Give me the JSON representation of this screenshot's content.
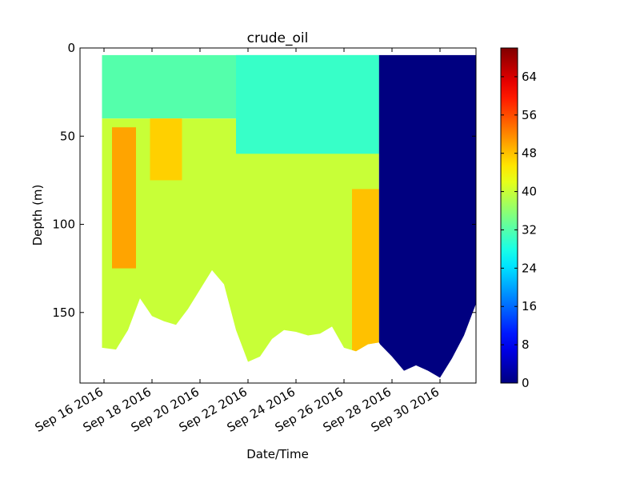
{
  "chart_data": {
    "type": "heatmap",
    "title": "crude_oil",
    "xlabel": "Date/Time",
    "ylabel": "Depth (m)",
    "x_ticks": [
      "Sep 16 2016",
      "Sep 18 2016",
      "Sep 20 2016",
      "Sep 22 2016",
      "Sep 24 2016",
      "Sep 26 2016",
      "Sep 28 2016",
      "Sep 30 2016"
    ],
    "x_range": [
      "2016-09-15T00:00",
      "2016-10-01T12:00"
    ],
    "y_ticks": [
      0,
      50,
      100,
      150
    ],
    "y_range": [
      0,
      190
    ],
    "y_inverted": true,
    "colorbar": {
      "colormap": "jet",
      "range": [
        0,
        70
      ],
      "ticks": [
        0,
        8,
        16,
        24,
        32,
        40,
        48,
        56,
        64
      ]
    },
    "profiles": {
      "start": "2016-09-15T22:00",
      "end": "2016-10-01T12:00",
      "top_depth": 4,
      "data_gap_after": "2016-09-27T11:00",
      "max_depth_by_date": [
        {
          "date": "2016-09-15T22:00",
          "max_depth": 170
        },
        {
          "date": "2016-09-16T12:00",
          "max_depth": 171
        },
        {
          "date": "2016-09-17T00:00",
          "max_depth": 160
        },
        {
          "date": "2016-09-17T12:00",
          "max_depth": 142
        },
        {
          "date": "2016-09-18T00:00",
          "max_depth": 152
        },
        {
          "date": "2016-09-18T12:00",
          "max_depth": 155
        },
        {
          "date": "2016-09-19T00:00",
          "max_depth": 157
        },
        {
          "date": "2016-09-19T12:00",
          "max_depth": 148
        },
        {
          "date": "2016-09-20T00:00",
          "max_depth": 137
        },
        {
          "date": "2016-09-20T12:00",
          "max_depth": 126
        },
        {
          "date": "2016-09-21T00:00",
          "max_depth": 134
        },
        {
          "date": "2016-09-21T12:00",
          "max_depth": 160
        },
        {
          "date": "2016-09-22T00:00",
          "max_depth": 178
        },
        {
          "date": "2016-09-22T12:00",
          "max_depth": 175
        },
        {
          "date": "2016-09-23T00:00",
          "max_depth": 165
        },
        {
          "date": "2016-09-23T12:00",
          "max_depth": 160
        },
        {
          "date": "2016-09-24T00:00",
          "max_depth": 161
        },
        {
          "date": "2016-09-24T12:00",
          "max_depth": 163
        },
        {
          "date": "2016-09-25T00:00",
          "max_depth": 162
        },
        {
          "date": "2016-09-25T12:00",
          "max_depth": 158
        },
        {
          "date": "2016-09-26T00:00",
          "max_depth": 170
        },
        {
          "date": "2016-09-26T12:00",
          "max_depth": 172
        },
        {
          "date": "2016-09-27T00:00",
          "max_depth": 168
        },
        {
          "date": "2016-09-27T11:00",
          "max_depth": 167
        },
        {
          "date": "2016-09-27T12:00",
          "max_depth": 168
        },
        {
          "date": "2016-09-28T00:00",
          "max_depth": 175
        },
        {
          "date": "2016-09-28T12:00",
          "max_depth": 183
        },
        {
          "date": "2016-09-29T00:00",
          "max_depth": 180
        },
        {
          "date": "2016-09-29T12:00",
          "max_depth": 183
        },
        {
          "date": "2016-09-30T00:00",
          "max_depth": 187
        },
        {
          "date": "2016-09-30T12:00",
          "max_depth": 176
        },
        {
          "date": "2016-10-01T00:00",
          "max_depth": 163
        },
        {
          "date": "2016-10-01T12:00",
          "max_depth": 145
        }
      ],
      "value_regions": [
        {
          "from": "2016-09-15T22:00",
          "to": "2016-09-27T11:00",
          "depth_from": 4,
          "depth_to": 40,
          "value": 32
        },
        {
          "from": "2016-09-15T22:00",
          "to": "2016-09-27T11:00",
          "depth_from": 40,
          "depth_to": 190,
          "value": 40
        },
        {
          "from": "2016-09-16T08:00",
          "to": "2016-09-17T08:00",
          "depth_from": 45,
          "depth_to": 125,
          "value": 50
        },
        {
          "from": "2016-09-17T22:00",
          "to": "2016-09-19T06:00",
          "depth_from": 40,
          "depth_to": 75,
          "value": 47
        },
        {
          "from": "2016-09-21T12:00",
          "to": "2016-09-27T11:00",
          "depth_from": 4,
          "depth_to": 60,
          "value": 30
        },
        {
          "from": "2016-09-26T08:00",
          "to": "2016-09-27T11:00",
          "depth_from": 80,
          "depth_to": 175,
          "value": 48
        },
        {
          "from": "2016-09-27T11:00",
          "to": "2016-10-01T12:00",
          "depth_from": 4,
          "depth_to": 190,
          "value": 0
        }
      ]
    }
  }
}
